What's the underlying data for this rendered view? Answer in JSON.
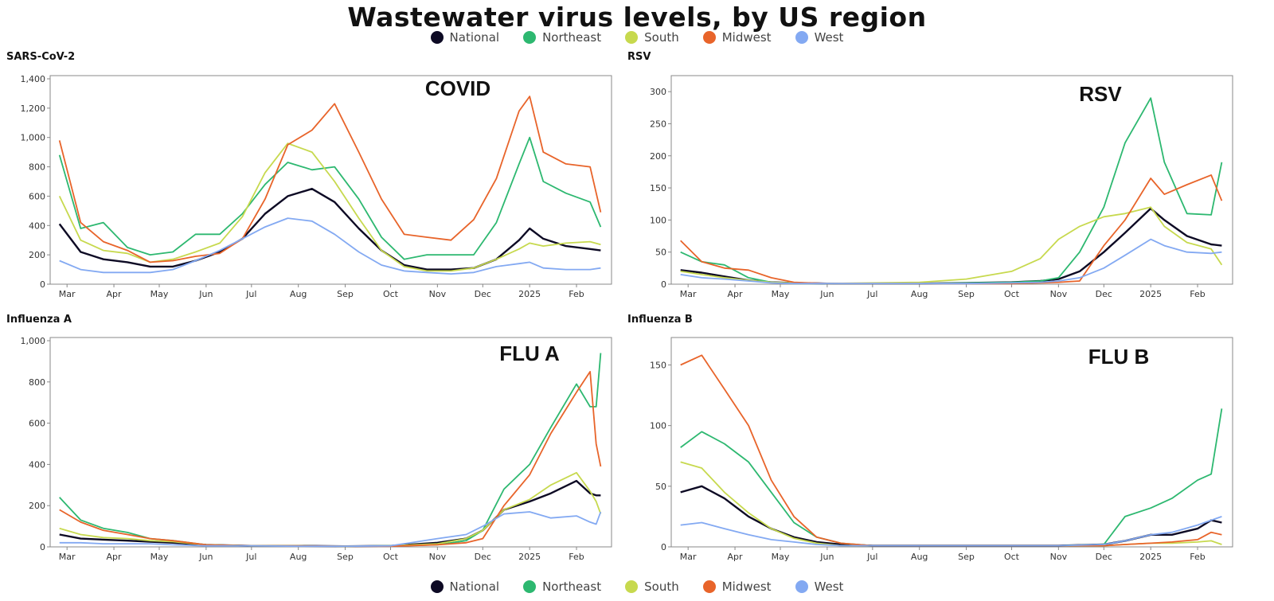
{
  "title": "Wastewater virus levels, by US region",
  "legend": {
    "items": [
      {
        "name": "National",
        "color": "#0d0a24"
      },
      {
        "name": "Northeast",
        "color": "#2db870"
      },
      {
        "name": "South",
        "color": "#c7d94e"
      },
      {
        "name": "Midwest",
        "color": "#e8642a"
      },
      {
        "name": "West",
        "color": "#83a9f2"
      }
    ]
  },
  "chart_data": [
    {
      "type": "line",
      "panel": "top-left",
      "title": "SARS-CoV-2",
      "annotation": "COVID",
      "x_tick_labels": [
        "Mar",
        "Apr",
        "May",
        "Jun",
        "Jul",
        "Aug",
        "Sep",
        "Oct",
        "Nov",
        "Dec",
        "2025",
        "Feb"
      ],
      "ylim": [
        0,
        1400
      ],
      "y_ticks": [
        0,
        200,
        400,
        600,
        800,
        1000,
        1200,
        1400
      ],
      "y_tick_labels": [
        "0",
        "200",
        "400",
        "600",
        "800",
        "1,000",
        "1,200",
        "1,400"
      ],
      "x": [
        "2024-02-25",
        "2024-03-10",
        "2024-03-25",
        "2024-04-10",
        "2024-04-25",
        "2024-05-10",
        "2024-05-25",
        "2024-06-10",
        "2024-06-25",
        "2024-07-10",
        "2024-07-25",
        "2024-08-10",
        "2024-08-25",
        "2024-09-10",
        "2024-09-25",
        "2024-10-10",
        "2024-10-25",
        "2024-11-10",
        "2024-11-25",
        "2024-12-10",
        "2024-12-25",
        "2025-01-01",
        "2025-01-10",
        "2025-01-25",
        "2025-02-10",
        "2025-02-17"
      ],
      "series": [
        {
          "name": "National",
          "values": [
            410,
            220,
            170,
            150,
            120,
            120,
            160,
            220,
            310,
            480,
            600,
            650,
            560,
            380,
            230,
            130,
            100,
            100,
            110,
            170,
            300,
            380,
            310,
            260,
            240,
            230
          ]
        },
        {
          "name": "Northeast",
          "values": [
            880,
            380,
            420,
            250,
            200,
            220,
            340,
            340,
            480,
            680,
            830,
            780,
            800,
            580,
            320,
            170,
            200,
            200,
            200,
            420,
            820,
            1000,
            700,
            620,
            560,
            390
          ]
        },
        {
          "name": "South",
          "values": [
            600,
            300,
            230,
            210,
            150,
            170,
            220,
            280,
            460,
            760,
            960,
            900,
            700,
            450,
            230,
            120,
            90,
            90,
            110,
            170,
            240,
            280,
            260,
            280,
            290,
            270
          ]
        },
        {
          "name": "Midwest",
          "values": [
            980,
            420,
            290,
            230,
            150,
            160,
            190,
            210,
            310,
            580,
            950,
            1050,
            1230,
            900,
            580,
            340,
            320,
            300,
            440,
            720,
            1180,
            1280,
            900,
            820,
            800,
            490
          ]
        },
        {
          "name": "West",
          "values": [
            160,
            100,
            80,
            80,
            80,
            100,
            160,
            230,
            310,
            390,
            450,
            430,
            340,
            220,
            130,
            90,
            80,
            70,
            80,
            120,
            140,
            150,
            110,
            100,
            100,
            110
          ]
        }
      ]
    },
    {
      "type": "line",
      "panel": "top-right",
      "title": "RSV",
      "annotation": "RSV",
      "x_tick_labels": [
        "Mar",
        "Apr",
        "May",
        "Jun",
        "Jul",
        "Aug",
        "Sep",
        "Oct",
        "Nov",
        "Dec",
        "2025",
        "Feb"
      ],
      "ylim": [
        0,
        320
      ],
      "y_ticks": [
        0,
        50,
        100,
        150,
        200,
        250,
        300
      ],
      "y_tick_labels": [
        "0",
        "50",
        "100",
        "150",
        "200",
        "250",
        "300"
      ],
      "x": [
        "2024-02-25",
        "2024-03-10",
        "2024-03-25",
        "2024-04-10",
        "2024-04-25",
        "2024-05-10",
        "2024-06-01",
        "2024-07-01",
        "2024-08-01",
        "2024-09-01",
        "2024-10-01",
        "2024-10-20",
        "2024-11-01",
        "2024-11-15",
        "2024-12-01",
        "2024-12-15",
        "2025-01-01",
        "2025-01-10",
        "2025-01-25",
        "2025-02-10",
        "2025-02-17"
      ],
      "series": [
        {
          "name": "National",
          "values": [
            22,
            18,
            12,
            6,
            3,
            2,
            1,
            1,
            1,
            2,
            3,
            5,
            8,
            20,
            50,
            80,
            118,
            100,
            75,
            62,
            60
          ]
        },
        {
          "name": "Northeast",
          "values": [
            50,
            35,
            30,
            10,
            3,
            1,
            1,
            1,
            1,
            2,
            3,
            5,
            10,
            50,
            120,
            220,
            290,
            190,
            110,
            108,
            190
          ]
        },
        {
          "name": "South",
          "values": [
            20,
            15,
            10,
            6,
            3,
            2,
            1,
            2,
            3,
            8,
            20,
            40,
            70,
            90,
            105,
            110,
            120,
            90,
            65,
            55,
            30
          ]
        },
        {
          "name": "Midwest",
          "values": [
            68,
            35,
            25,
            22,
            10,
            3,
            1,
            1,
            1,
            1,
            1,
            2,
            3,
            5,
            60,
            100,
            165,
            140,
            155,
            170,
            130
          ]
        },
        {
          "name": "West",
          "values": [
            15,
            10,
            8,
            5,
            2,
            1,
            1,
            1,
            1,
            1,
            2,
            3,
            5,
            10,
            25,
            45,
            70,
            60,
            50,
            48,
            50
          ]
        }
      ]
    },
    {
      "type": "line",
      "panel": "bottom-left",
      "title": "Influenza A",
      "annotation": "FLU A",
      "x_tick_labels": [
        "Mar",
        "Apr",
        "May",
        "Jun",
        "Jul",
        "Aug",
        "Sep",
        "Oct",
        "Nov",
        "Dec",
        "2025",
        "Feb"
      ],
      "ylim": [
        0,
        1000
      ],
      "y_ticks": [
        0,
        200,
        400,
        600,
        800,
        1000
      ],
      "y_tick_labels": [
        "0",
        "200",
        "400",
        "600",
        "800",
        "1,000"
      ],
      "x": [
        "2024-02-25",
        "2024-03-10",
        "2024-03-25",
        "2024-04-10",
        "2024-04-25",
        "2024-05-10",
        "2024-06-01",
        "2024-07-01",
        "2024-08-01",
        "2024-09-01",
        "2024-10-01",
        "2024-11-01",
        "2024-11-20",
        "2024-12-01",
        "2024-12-15",
        "2025-01-01",
        "2025-01-15",
        "2025-02-01",
        "2025-02-10",
        "2025-02-14",
        "2025-02-17"
      ],
      "series": [
        {
          "name": "National",
          "values": [
            60,
            40,
            35,
            30,
            25,
            20,
            10,
            5,
            5,
            3,
            5,
            20,
            40,
            80,
            180,
            220,
            260,
            320,
            260,
            250,
            250
          ]
        },
        {
          "name": "Northeast",
          "values": [
            240,
            130,
            90,
            70,
            40,
            30,
            10,
            5,
            5,
            3,
            5,
            10,
            30,
            80,
            280,
            400,
            580,
            790,
            680,
            680,
            940
          ]
        },
        {
          "name": "South",
          "values": [
            90,
            60,
            45,
            40,
            30,
            25,
            10,
            5,
            5,
            3,
            5,
            15,
            40,
            80,
            180,
            230,
            300,
            360,
            270,
            220,
            160
          ]
        },
        {
          "name": "Midwest",
          "values": [
            180,
            120,
            80,
            60,
            40,
            30,
            10,
            5,
            5,
            3,
            3,
            10,
            20,
            40,
            200,
            350,
            550,
            750,
            850,
            500,
            390
          ]
        },
        {
          "name": "West",
          "values": [
            20,
            20,
            15,
            15,
            15,
            10,
            5,
            5,
            3,
            3,
            5,
            40,
            60,
            100,
            160,
            170,
            140,
            150,
            120,
            110,
            170
          ]
        }
      ]
    },
    {
      "type": "line",
      "panel": "bottom-right",
      "title": "Influenza B",
      "annotation": "FLU B",
      "x_tick_labels": [
        "Mar",
        "Apr",
        "May",
        "Jun",
        "Jul",
        "Aug",
        "Sep",
        "Oct",
        "Nov",
        "Dec",
        "2025",
        "Feb"
      ],
      "ylim": [
        0,
        170
      ],
      "y_ticks": [
        0,
        50,
        100,
        150
      ],
      "y_tick_labels": [
        "0",
        "50",
        "100",
        "150"
      ],
      "x": [
        "2024-02-25",
        "2024-03-10",
        "2024-03-25",
        "2024-04-10",
        "2024-04-25",
        "2024-05-10",
        "2024-05-25",
        "2024-06-10",
        "2024-07-01",
        "2024-08-01",
        "2024-09-01",
        "2024-10-01",
        "2024-11-01",
        "2024-12-01",
        "2024-12-15",
        "2025-01-01",
        "2025-01-15",
        "2025-02-01",
        "2025-02-10",
        "2025-02-17"
      ],
      "series": [
        {
          "name": "National",
          "values": [
            45,
            50,
            40,
            25,
            15,
            8,
            4,
            2,
            1,
            1,
            1,
            1,
            1,
            2,
            5,
            10,
            10,
            15,
            22,
            20
          ]
        },
        {
          "name": "Northeast",
          "values": [
            82,
            95,
            85,
            70,
            45,
            20,
            8,
            3,
            1,
            1,
            1,
            1,
            1,
            2,
            25,
            32,
            40,
            55,
            60,
            114
          ]
        },
        {
          "name": "South",
          "values": [
            70,
            65,
            45,
            28,
            15,
            7,
            3,
            1,
            1,
            1,
            1,
            1,
            1,
            1,
            2,
            3,
            3,
            4,
            5,
            2
          ]
        },
        {
          "name": "Midwest",
          "values": [
            150,
            158,
            130,
            100,
            55,
            25,
            8,
            3,
            1,
            1,
            1,
            1,
            1,
            1,
            2,
            3,
            4,
            6,
            12,
            10
          ]
        },
        {
          "name": "West",
          "values": [
            18,
            20,
            15,
            10,
            6,
            4,
            2,
            1,
            1,
            1,
            1,
            1,
            1,
            2,
            5,
            10,
            12,
            18,
            22,
            25
          ]
        }
      ]
    }
  ]
}
